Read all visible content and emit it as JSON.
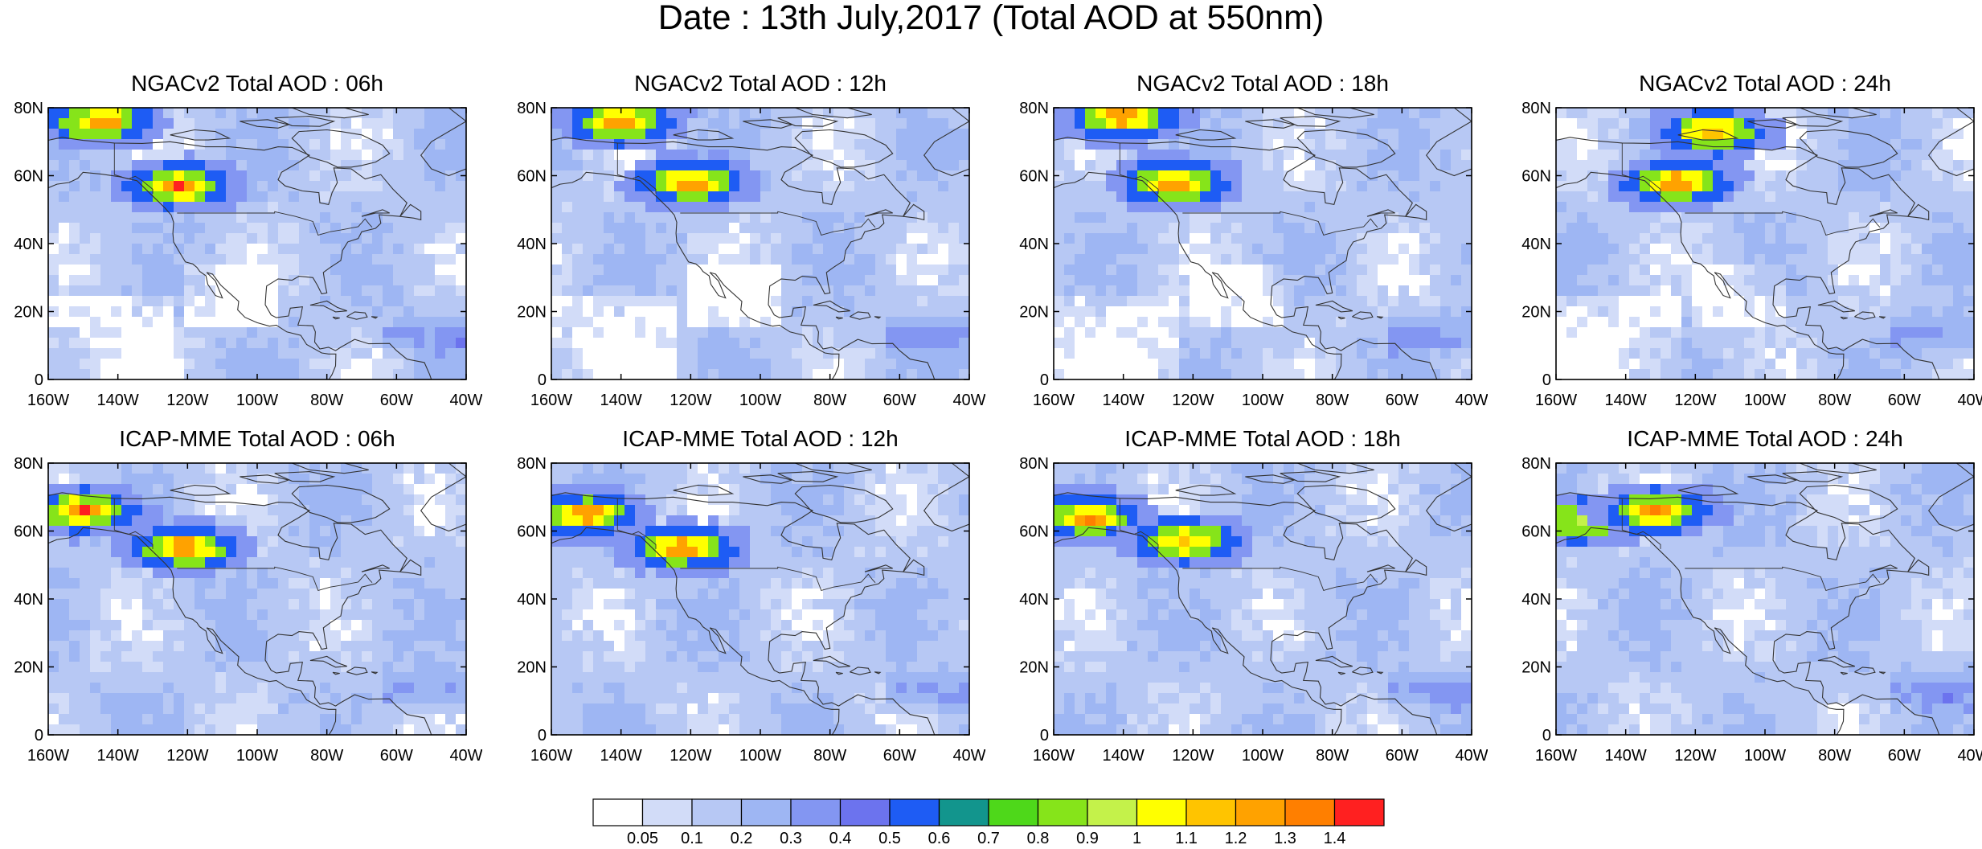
{
  "title": "Date : 13th July,2017 (Total AOD at 550nm)",
  "panels": [
    {
      "title": "NGACv2 Total AOD : 06h"
    },
    {
      "title": "NGACv2 Total AOD : 12h"
    },
    {
      "title": "NGACv2 Total AOD : 18h"
    },
    {
      "title": "NGACv2 Total AOD : 24h"
    },
    {
      "title": "ICAP-MME Total AOD : 06h"
    },
    {
      "title": "ICAP-MME Total AOD : 12h"
    },
    {
      "title": "ICAP-MME Total AOD : 18h"
    },
    {
      "title": "ICAP-MME Total AOD : 24h"
    }
  ],
  "axes": {
    "lon_ticks": [
      "160W",
      "140W",
      "120W",
      "100W",
      "80W",
      "60W",
      "40W"
    ],
    "lat_ticks": [
      "80N",
      "60N",
      "40N",
      "20N",
      "0"
    ],
    "lon_range": [
      -160,
      -40
    ],
    "lat_range": [
      0,
      80
    ]
  },
  "colorbar": {
    "labels": [
      "0.05",
      "0.1",
      "0.2",
      "0.3",
      "0.4",
      "0.5",
      "0.6",
      "0.7",
      "0.8",
      "0.9",
      "1",
      "1.1",
      "1.2",
      "1.3",
      "1.4"
    ],
    "colors": [
      "#ffffff",
      "#d2dcf8",
      "#b7c8f4",
      "#9eb6f3",
      "#8396f2",
      "#6c73ee",
      "#1e5cf4",
      "#12958d",
      "#4ed81a",
      "#86e41a",
      "#c4f24a",
      "#ffff00",
      "#ffc400",
      "#ffa200",
      "#ff7f00",
      "#ff2020"
    ]
  },
  "chart_data": {
    "type": "heatmap",
    "variable": "Total AOD at 550nm",
    "date": "13th July,2017",
    "models": [
      "NGACv2",
      "ICAP-MME"
    ],
    "lead_times": [
      "06h",
      "12h",
      "18h",
      "24h"
    ],
    "domain": {
      "lon": [
        -160,
        -40
      ],
      "lat": [
        0,
        80
      ]
    },
    "features": [
      {
        "panel": "NGACv2 Total AOD : 06h",
        "lon": -122,
        "lat": 57,
        "aod": 1.4
      },
      {
        "panel": "NGACv2 Total AOD : 06h",
        "lon": -145,
        "lat": 76,
        "aod": 1.2
      },
      {
        "panel": "NGACv2 Total AOD : 12h",
        "lon": -120,
        "lat": 58,
        "aod": 1.4
      },
      {
        "panel": "NGACv2 Total AOD : 12h",
        "lon": -140,
        "lat": 76,
        "aod": 1.2
      },
      {
        "panel": "NGACv2 Total AOD : 18h",
        "lon": -125,
        "lat": 58,
        "aod": 1.4
      },
      {
        "panel": "NGACv2 Total AOD : 18h",
        "lon": -140,
        "lat": 77,
        "aod": 1.2
      },
      {
        "panel": "NGACv2 Total AOD : 24h",
        "lon": -125,
        "lat": 58,
        "aod": 1.4
      },
      {
        "panel": "NGACv2 Total AOD : 24h",
        "lon": -115,
        "lat": 73,
        "aod": 1.1
      },
      {
        "panel": "ICAP-MME Total AOD : 06h",
        "lon": -150,
        "lat": 66,
        "aod": 1.4
      },
      {
        "panel": "ICAP-MME Total AOD : 06h",
        "lon": -121,
        "lat": 55,
        "aod": 1.3
      },
      {
        "panel": "ICAP-MME Total AOD : 12h",
        "lon": -150,
        "lat": 65,
        "aod": 1.4
      },
      {
        "panel": "ICAP-MME Total AOD : 12h",
        "lon": -122,
        "lat": 55,
        "aod": 1.3
      },
      {
        "panel": "ICAP-MME Total AOD : 18h",
        "lon": -150,
        "lat": 64,
        "aod": 1.3
      },
      {
        "panel": "ICAP-MME Total AOD : 18h",
        "lon": -122,
        "lat": 57,
        "aod": 1.1
      },
      {
        "panel": "ICAP-MME Total AOD : 24h",
        "lon": -152,
        "lat": 63,
        "aod": 0.9
      },
      {
        "panel": "ICAP-MME Total AOD : 24h",
        "lon": -131,
        "lat": 66,
        "aod": 1.3
      }
    ]
  }
}
